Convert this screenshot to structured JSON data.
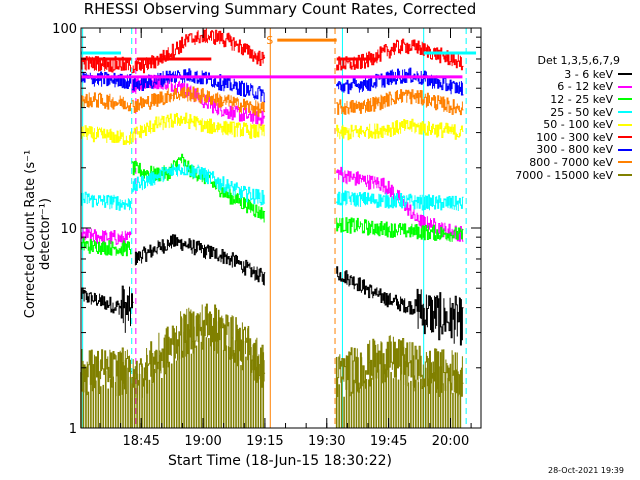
{
  "chart_data": {
    "type": "line",
    "title": "RHESSI Observing Summary Count Rates, Corrected",
    "xlabel": "Start Time (18-Jun-15 18:30:22)",
    "ylabel": "Corrected Count Rate (s⁻¹ detector⁻¹)",
    "yscale": "log",
    "ylim": [
      1,
      100
    ],
    "xlim_minutes": [
      0,
      97
    ],
    "x_ticks": [
      {
        "label": "18:45",
        "minute": 14.6
      },
      {
        "label": "19:00",
        "minute": 29.6
      },
      {
        "label": "19:15",
        "minute": 44.6
      },
      {
        "label": "19:30",
        "minute": 59.6
      },
      {
        "label": "19:45",
        "minute": 74.6
      },
      {
        "label": "20:00",
        "minute": 89.6
      }
    ],
    "y_ticks": [
      {
        "label": "1",
        "value": 1
      },
      {
        "label": "10",
        "value": 10
      },
      {
        "label": "100",
        "value": 100
      }
    ],
    "legend_header": "Det 1,3,5,6,7,9",
    "attenuator_label": "S",
    "timestamp": "28-Oct-2021 19:39",
    "series": [
      {
        "name": "3 - 6 keV",
        "color": "#000000",
        "segments": [
          {
            "start": 0,
            "end": 12.7,
            "base": [
              4.6,
              4.4,
              4.2,
              4.0,
              3.8
            ]
          },
          {
            "start": 13.2,
            "end": 44.6,
            "base": [
              7.0,
              7.5,
              8.0,
              8.5,
              8.4,
              8.0,
              7.6,
              7.4,
              7.0,
              6.5,
              6.0,
              5.6
            ]
          },
          {
            "start": 62.0,
            "end": 92.5,
            "base": [
              6.0,
              5.6,
              5.2,
              4.8,
              4.5,
              4.3,
              4.1,
              4.0,
              3.8,
              3.6,
              3.5,
              3.4
            ]
          }
        ]
      },
      {
        "name": "6 - 12 keV",
        "color": "#ff00ff",
        "segments": [
          {
            "start": 0,
            "end": 12.2,
            "base": [
              9.2,
              9.1,
              9.0,
              8.9,
              8.9
            ]
          },
          {
            "start": 12.4,
            "end": 44.6,
            "base": [
              52,
              53,
              54,
              53,
              51,
              47,
              43,
              40,
              38,
              37,
              36,
              35
            ]
          },
          {
            "start": 62.0,
            "end": 92.5,
            "base": [
              19,
              18,
              17.5,
              17,
              16.5,
              15,
              13,
              11,
              10.5,
              10,
              9.6,
              9.3
            ]
          }
        ]
      },
      {
        "name": "12 - 25 keV",
        "color": "#00ff00",
        "segments": [
          {
            "start": 0,
            "end": 12.2,
            "base": [
              8.2,
              8.1,
              8.0,
              7.9,
              7.9
            ]
          },
          {
            "start": 12.4,
            "end": 44.6,
            "base": [
              20,
              19,
              18.5,
              19,
              22,
              19,
              18,
              16,
              14.5,
              13.5,
              12.5,
              11.5
            ]
          },
          {
            "start": 62.0,
            "end": 92.5,
            "base": [
              10.5,
              10.3,
              10.2,
              10.0,
              9.9,
              9.8,
              9.7,
              9.6,
              9.5,
              9.4,
              9.3,
              9.2
            ]
          }
        ]
      },
      {
        "name": "25 - 50 keV",
        "color": "#00ffff",
        "segments": [
          {
            "start": 0,
            "end": 12.2,
            "base": [
              14,
              13.8,
              13.6,
              13.4,
              13.2
            ]
          },
          {
            "start": 12.4,
            "end": 44.6,
            "base": [
              16,
              17,
              18,
              19,
              20,
              19.5,
              18.5,
              17,
              16,
              15,
              14.5,
              14
            ]
          },
          {
            "start": 62.0,
            "end": 92.5,
            "base": [
              14,
              14,
              13.9,
              13.8,
              13.8,
              13.7,
              13.6,
              13.5,
              13.4,
              13.3,
              13.2,
              13.1
            ]
          }
        ]
      },
      {
        "name": "50 - 100 keV",
        "color": "#ffff00",
        "segments": [
          {
            "start": 0,
            "end": 12.2,
            "base": [
              30,
              29.5,
              29,
              28.5,
              28
            ]
          },
          {
            "start": 12.4,
            "end": 44.6,
            "base": [
              29,
              31,
              33,
              34,
              35,
              34,
              32.5,
              32,
              31.5,
              31,
              30.5,
              30
            ]
          },
          {
            "start": 62.0,
            "end": 92.5,
            "base": [
              30,
              30,
              30,
              30.5,
              31,
              31.5,
              32,
              32,
              31.5,
              31,
              30.5,
              30
            ]
          }
        ]
      },
      {
        "name": "100 - 300 keV",
        "color": "#ff0000",
        "segments": [
          {
            "start": 0,
            "end": 12.2,
            "base": [
              67,
              66.5,
              66,
              65.5,
              65
            ]
          },
          {
            "start": 12.4,
            "end": 44.6,
            "base": [
              64,
              65,
              68,
              74,
              82,
              89,
              91,
              90,
              86,
              80,
              74,
              68
            ]
          },
          {
            "start": 62.0,
            "end": 92.5,
            "base": [
              66,
              66,
              67,
              70,
              75,
              79,
              81,
              80,
              77,
              73,
              70,
              67
            ]
          }
        ]
      },
      {
        "name": "300 - 800 keV",
        "color": "#0000ff",
        "segments": [
          {
            "start": 0,
            "end": 12.2,
            "base": [
              56,
              55.5,
              55,
              54.5,
              54
            ]
          },
          {
            "start": 12.4,
            "end": 44.6,
            "base": [
              52,
              53,
              55,
              57,
              58,
              57.5,
              56,
              54,
              52,
              50,
              48,
              46
            ]
          },
          {
            "start": 62.0,
            "end": 92.5,
            "base": [
              51,
              51,
              52,
              53,
              55,
              57,
              58,
              57,
              55,
              53,
              51,
              50
            ]
          }
        ]
      },
      {
        "name": "800 - 7000 keV",
        "color": "#ff8000",
        "segments": [
          {
            "start": 0,
            "end": 12.2,
            "base": [
              44,
              43.5,
              43,
              42.5,
              42
            ]
          },
          {
            "start": 12.4,
            "end": 44.6,
            "base": [
              41,
              42,
              44,
              46,
              47,
              46.5,
              45.5,
              44,
              42.5,
              41,
              40,
              39
            ]
          },
          {
            "start": 62.0,
            "end": 92.5,
            "base": [
              40,
              40,
              40.5,
              41.5,
              43,
              45,
              46,
              45,
              43.5,
              42,
              40.5,
              40
            ]
          }
        ]
      },
      {
        "name": "7000 - 15000 keV",
        "color": "#808000",
        "segments": [
          {
            "start": 0,
            "end": 12.2,
            "base": [
              1.9,
              1.9,
              1.9,
              1.9,
              1.9
            ]
          },
          {
            "start": 12.4,
            "end": 44.6,
            "base": [
              1.7,
              1.9,
              2.2,
              2.5,
              2.9,
              3.1,
              3.3,
              3.1,
              2.9,
              2.6,
              2.3,
              2.0
            ]
          },
          {
            "start": 62.0,
            "end": 92.5,
            "base": [
              1.8,
              1.9,
              2.0,
              2.1,
              2.2,
              2.2,
              2.1,
              2.0,
              1.9,
              1.9,
              1.9,
              1.9
            ]
          }
        ]
      }
    ],
    "flags": [
      {
        "name": "saa",
        "color": "#00ffff",
        "value": 75,
        "intervals": [
          [
            0,
            9.7
          ],
          [
            83.1,
            95.8
          ]
        ]
      },
      {
        "name": "eclipse",
        "color": "#ff0000",
        "value": 70,
        "intervals": [
          [
            0,
            12.2
          ],
          [
            13.5,
            31.6
          ],
          [
            62.0,
            72.0
          ]
        ]
      },
      {
        "name": "decimation",
        "color": "#ff00ff",
        "value": 57,
        "intervals": [
          [
            0,
            92.5
          ]
        ]
      },
      {
        "name": "attenuator",
        "color": "#ff8000",
        "value": 87,
        "intervals": [
          [
            47.6,
            62.0
          ]
        ]
      }
    ],
    "vertical_markers": [
      {
        "minute": 0.4,
        "color": "#00ffff",
        "style": "solid"
      },
      {
        "minute": 12.3,
        "color": "#00ffff",
        "style": "dashed"
      },
      {
        "minute": 13.3,
        "color": "#ff00ff",
        "style": "dashed"
      },
      {
        "minute": 45.9,
        "color": "#ff8000",
        "style": "solid"
      },
      {
        "minute": 61.6,
        "color": "#ff8000",
        "style": "dashed"
      },
      {
        "minute": 63.4,
        "color": "#00ffff",
        "style": "solid"
      },
      {
        "minute": 83.1,
        "color": "#00ffff",
        "style": "solid"
      },
      {
        "minute": 93.4,
        "color": "#00ffff",
        "style": "dashed"
      }
    ]
  }
}
